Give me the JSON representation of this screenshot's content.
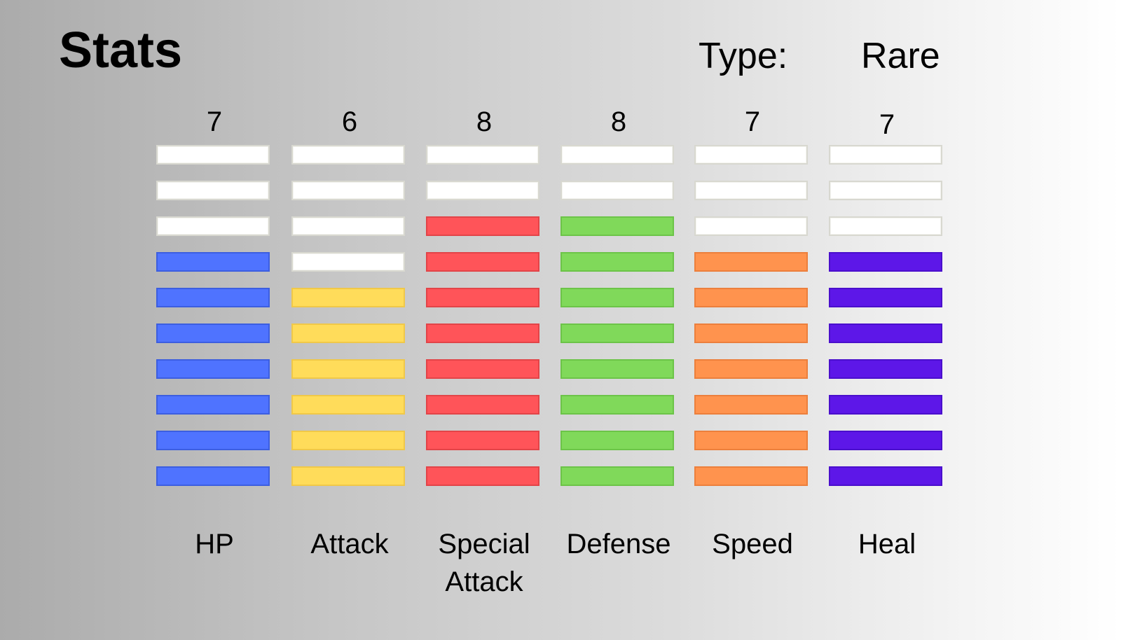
{
  "header": {
    "title": "Stats",
    "type_label": "Type:",
    "type_value": "Rare"
  },
  "max_level": 10,
  "stats": [
    {
      "name": "HP",
      "value": "7",
      "level": 7,
      "color": "#4f73ff",
      "border": "#3c5ee0"
    },
    {
      "name": "Attack",
      "value": "6",
      "level": 6,
      "color": "#ffdc5a",
      "border": "#f0c848"
    },
    {
      "name": "Special Attack",
      "value": "8",
      "level": 8,
      "color": "#ff5459",
      "border": "#e24448"
    },
    {
      "name": "Defense",
      "value": "8",
      "level": 8,
      "color": "#80d95a",
      "border": "#6cc448"
    },
    {
      "name": "Speed",
      "value": "7",
      "level": 7,
      "color": "#ff934e",
      "border": "#ec7f3c"
    },
    {
      "name": "Heal",
      "value": "7",
      "level": 7,
      "color": "#5d17e8",
      "border": "#4a0fcc"
    }
  ]
}
